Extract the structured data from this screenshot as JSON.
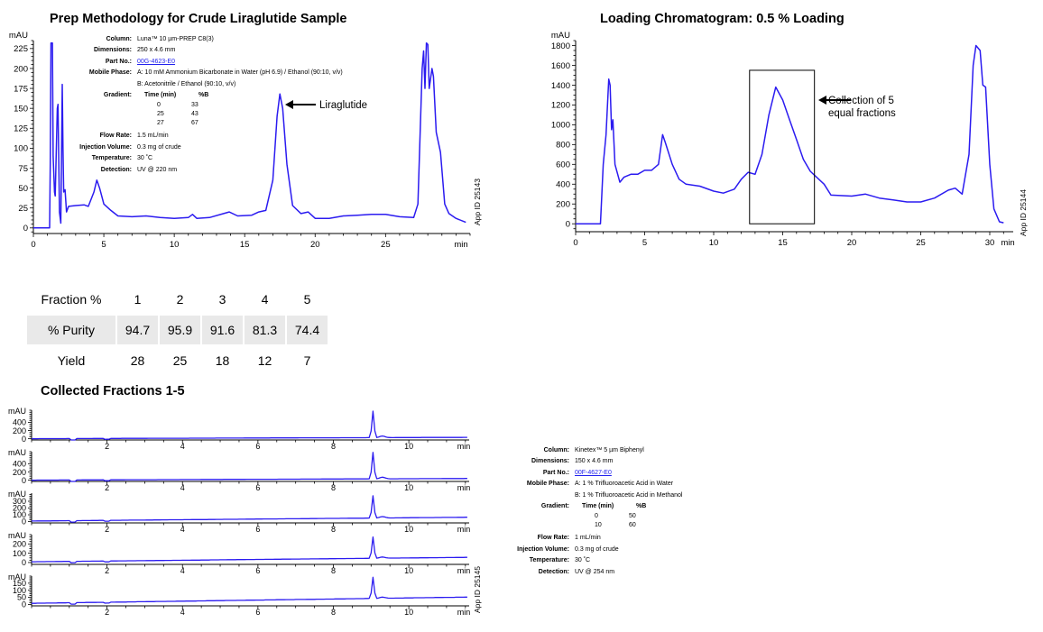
{
  "prep": {
    "title": "Prep Methodology for Crude Liraglutide Sample",
    "info": [
      {
        "label": "Column:",
        "value": "Luna™ 10 µm-PREP C8(3)"
      },
      {
        "label": "Dimensions:",
        "value": "250 x 4.6 mm"
      },
      {
        "label": "Part No.:",
        "value": "00G-4623-E0",
        "link": true
      },
      {
        "label": "Mobile Phase:",
        "value": "A: 10 mM Ammonium Bicarbonate in Water (pH 6.9) / Ethanol (90:10, v/v)",
        "value2": "B: Acetonitrile / Ethanol (90:10, v/v)"
      }
    ],
    "gradient": {
      "label": "Gradient:",
      "h1": "Time (min)",
      "h2": "%B",
      "rows": [
        [
          "0",
          "33"
        ],
        [
          "25",
          "43"
        ],
        [
          "27",
          "67"
        ]
      ]
    },
    "info2": [
      {
        "label": "Flow Rate:",
        "value": "1.5 mL/min"
      },
      {
        "label": "Injection Volume:",
        "value": "0.3 mg of crude"
      },
      {
        "label": "Temperature:",
        "value": "30 ˚C"
      },
      {
        "label": "Detection:",
        "value": "UV @ 220 nm"
      }
    ],
    "annotation": "Liraglutide"
  },
  "loading": {
    "title": "Loading Chromatogram: 0.5 % Loading",
    "annotation_line1": "Collection of 5",
    "annotation_line2": "equal fractions"
  },
  "fractions_table": {
    "header": {
      "label": "Fraction %",
      "values": [
        "1",
        "2",
        "3",
        "4",
        "5"
      ]
    },
    "rows": [
      {
        "label": "% Purity",
        "values": [
          "94.7",
          "95.9",
          "91.6",
          "81.3",
          "74.4"
        ]
      },
      {
        "label": "Yield",
        "values": [
          "28",
          "25",
          "18",
          "12",
          "7"
        ]
      }
    ]
  },
  "collected": {
    "title": "Collected Fractions 1-5",
    "info": [
      {
        "label": "Column:",
        "value": "Kinetex™ 5 µm Biphenyl"
      },
      {
        "label": "Dimensions:",
        "value": "150 x 4.6 mm"
      },
      {
        "label": "Part No.:",
        "value": "00F-4627-E0",
        "link": true
      },
      {
        "label": "Mobile Phase:",
        "value": "A: 1 % Trifluoroacetic Acid in Water",
        "value2": "B: 1 % Trifluoroacetic Acid in Methanol"
      }
    ],
    "gradient": {
      "label": "Gradient:",
      "h1": "Time (min)",
      "h2": "%B",
      "rows": [
        [
          "0",
          "50"
        ],
        [
          "10",
          "60"
        ]
      ]
    },
    "info2": [
      {
        "label": "Flow Rate:",
        "value": "1 mL/min"
      },
      {
        "label": "Injection Volume:",
        "value": "0.3 mg of crude"
      },
      {
        "label": "Temperature:",
        "value": "30 ˚C"
      },
      {
        "label": "Detection:",
        "value": "UV @ 254 nm"
      }
    ]
  },
  "colors": {
    "trace": "#2b1bf0",
    "axis": "#000000",
    "table_fill": "#e9e9e9",
    "link": "#2222ee"
  },
  "chart_data": [
    {
      "type": "line",
      "title": "Prep Methodology for Crude Liraglutide Sample",
      "xlabel": "min",
      "ylabel": "mAU",
      "xlim": [
        0,
        31
      ],
      "ylim": [
        -7,
        235
      ],
      "xticks": [
        0,
        5,
        10,
        15,
        20,
        25
      ],
      "yticks": [
        0,
        25,
        50,
        75,
        100,
        125,
        150,
        175,
        200,
        225
      ],
      "watermark": "App ID 25143",
      "points": [
        [
          0,
          0
        ],
        [
          1.15,
          0
        ],
        [
          1.2,
          80
        ],
        [
          1.25,
          232
        ],
        [
          1.35,
          232
        ],
        [
          1.4,
          90
        ],
        [
          1.5,
          45
        ],
        [
          1.55,
          40
        ],
        [
          1.7,
          150
        ],
        [
          1.75,
          155
        ],
        [
          1.85,
          20
        ],
        [
          1.95,
          6
        ],
        [
          2.05,
          180
        ],
        [
          2.1,
          100
        ],
        [
          2.15,
          45
        ],
        [
          2.25,
          48
        ],
        [
          2.35,
          20
        ],
        [
          2.5,
          27
        ],
        [
          3,
          28
        ],
        [
          3.6,
          29
        ],
        [
          3.9,
          27
        ],
        [
          4.3,
          45
        ],
        [
          4.5,
          60
        ],
        [
          4.7,
          50
        ],
        [
          5,
          30
        ],
        [
          5.5,
          22
        ],
        [
          6,
          15
        ],
        [
          7,
          14
        ],
        [
          8,
          15
        ],
        [
          9,
          13
        ],
        [
          10,
          12
        ],
        [
          11,
          13
        ],
        [
          11.3,
          17
        ],
        [
          11.6,
          12
        ],
        [
          12.5,
          13
        ],
        [
          13.5,
          18
        ],
        [
          13.9,
          20
        ],
        [
          14.5,
          15
        ],
        [
          15.5,
          16
        ],
        [
          16,
          20
        ],
        [
          16.5,
          22
        ],
        [
          17,
          60
        ],
        [
          17.3,
          140
        ],
        [
          17.5,
          168
        ],
        [
          17.7,
          150
        ],
        [
          18,
          80
        ],
        [
          18.4,
          28
        ],
        [
          19,
          18
        ],
        [
          19.5,
          20
        ],
        [
          20,
          12
        ],
        [
          21,
          12
        ],
        [
          22,
          15
        ],
        [
          23,
          16
        ],
        [
          24,
          17
        ],
        [
          25,
          17
        ],
        [
          26,
          14
        ],
        [
          27,
          13
        ],
        [
          27.3,
          30
        ],
        [
          27.6,
          200
        ],
        [
          27.7,
          222
        ],
        [
          27.8,
          175
        ],
        [
          27.9,
          232
        ],
        [
          28,
          230
        ],
        [
          28.1,
          175
        ],
        [
          28.3,
          200
        ],
        [
          28.4,
          190
        ],
        [
          28.6,
          120
        ],
        [
          28.9,
          95
        ],
        [
          29.2,
          30
        ],
        [
          29.5,
          18
        ],
        [
          30,
          12
        ],
        [
          30.7,
          7
        ]
      ]
    },
    {
      "type": "line",
      "title": "Loading Chromatogram: 0.5 % Loading",
      "xlabel": "min",
      "ylabel": "mAU",
      "xlim": [
        0,
        31.7
      ],
      "ylim": [
        -80,
        1850
      ],
      "xticks": [
        0,
        5,
        10,
        15,
        20,
        25,
        30
      ],
      "yticks": [
        0,
        200,
        400,
        600,
        800,
        1000,
        1200,
        1400,
        1600,
        1800
      ],
      "watermark": "App ID 25144",
      "collection_window": {
        "x": [
          12.6,
          17.3
        ],
        "y_top": 1550
      },
      "points": [
        [
          0,
          0
        ],
        [
          1.8,
          0
        ],
        [
          2,
          600
        ],
        [
          2.2,
          900
        ],
        [
          2.4,
          1460
        ],
        [
          2.5,
          1400
        ],
        [
          2.6,
          950
        ],
        [
          2.7,
          1050
        ],
        [
          2.85,
          600
        ],
        [
          3.2,
          420
        ],
        [
          3.5,
          470
        ],
        [
          4,
          500
        ],
        [
          4.5,
          500
        ],
        [
          5,
          540
        ],
        [
          5.5,
          540
        ],
        [
          6,
          600
        ],
        [
          6.3,
          900
        ],
        [
          6.5,
          820
        ],
        [
          7,
          600
        ],
        [
          7.5,
          450
        ],
        [
          8,
          400
        ],
        [
          9,
          380
        ],
        [
          10,
          330
        ],
        [
          10.7,
          310
        ],
        [
          11.5,
          350
        ],
        [
          12,
          450
        ],
        [
          12.5,
          520
        ],
        [
          13,
          500
        ],
        [
          13.5,
          700
        ],
        [
          14,
          1100
        ],
        [
          14.5,
          1380
        ],
        [
          15,
          1250
        ],
        [
          15.5,
          1050
        ],
        [
          16,
          850
        ],
        [
          16.5,
          650
        ],
        [
          17,
          530
        ],
        [
          18,
          400
        ],
        [
          18.5,
          290
        ],
        [
          20,
          280
        ],
        [
          21,
          300
        ],
        [
          22,
          260
        ],
        [
          23,
          240
        ],
        [
          24,
          220
        ],
        [
          25,
          220
        ],
        [
          26,
          260
        ],
        [
          27,
          340
        ],
        [
          27.5,
          360
        ],
        [
          28,
          300
        ],
        [
          28.5,
          700
        ],
        [
          28.8,
          1600
        ],
        [
          29,
          1800
        ],
        [
          29.3,
          1750
        ],
        [
          29.5,
          1400
        ],
        [
          29.7,
          1380
        ],
        [
          30,
          600
        ],
        [
          30.3,
          150
        ],
        [
          30.7,
          20
        ],
        [
          31,
          10
        ]
      ]
    },
    {
      "type": "line",
      "title": "Collected Fractions 1-5",
      "xlabel": "min",
      "ylabel": "mAU",
      "xlim": [
        0,
        11.6
      ],
      "xticks": [
        2,
        4,
        6,
        8,
        10
      ],
      "watermark": "App ID 25145",
      "panels": [
        {
          "ylim": [
            -30,
            700
          ],
          "yticks": [
            0,
            200,
            400
          ],
          "peak": 650,
          "baseline_end": 40
        },
        {
          "ylim": [
            -30,
            700
          ],
          "yticks": [
            0,
            200,
            400
          ],
          "peak": 650,
          "baseline_end": 50
        },
        {
          "ylim": [
            -20,
            420
          ],
          "yticks": [
            0,
            100,
            200,
            300
          ],
          "peak": 330,
          "baseline_end": 70
        },
        {
          "ylim": [
            -20,
            300
          ],
          "yticks": [
            0,
            100,
            200
          ],
          "peak": 230,
          "baseline_end": 60
        },
        {
          "ylim": [
            -10,
            200
          ],
          "yticks": [
            0,
            50,
            100,
            150
          ],
          "peak": 150,
          "baseline_end": 55
        }
      ]
    }
  ]
}
